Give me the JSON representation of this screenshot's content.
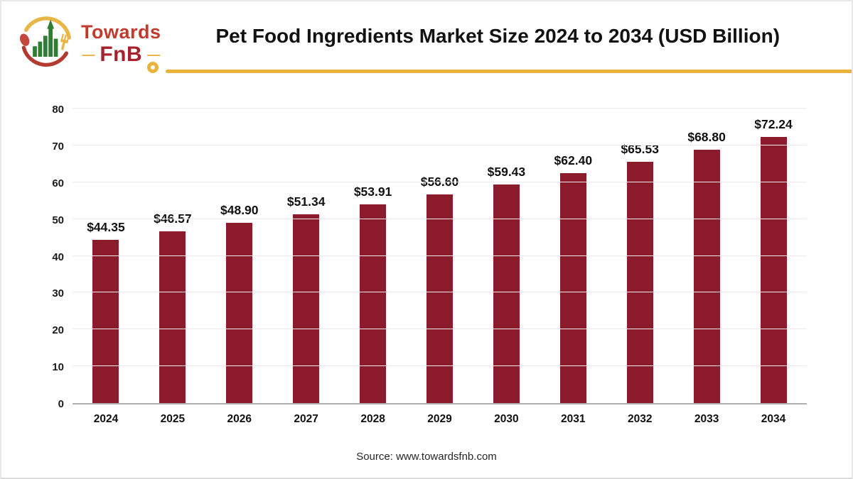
{
  "brand": {
    "name_top": "Towards",
    "name_bottom": "FnB",
    "dash_left": "—",
    "dash_right": "—"
  },
  "chart_data": {
    "type": "bar",
    "title": "Pet Food Ingredients Market Size 2024 to 2034 (USD Billion)",
    "categories": [
      "2024",
      "2025",
      "2026",
      "2027",
      "2028",
      "2029",
      "2030",
      "2031",
      "2032",
      "2033",
      "2034"
    ],
    "values": [
      44.35,
      46.57,
      48.9,
      51.34,
      53.91,
      56.6,
      59.43,
      62.4,
      65.53,
      68.8,
      72.24
    ],
    "value_labels": [
      "$44.35",
      "$46.57",
      "$48.90",
      "$51.34",
      "$53.91",
      "$56.60",
      "$59.43",
      "$62.40",
      "$65.53",
      "$68.80",
      "$72.24"
    ],
    "xlabel": "",
    "ylabel": "",
    "ylim": [
      0,
      80
    ],
    "yticks": [
      0,
      10,
      20,
      30,
      40,
      50,
      60,
      70,
      80
    ],
    "grid": true,
    "legend": "none",
    "bar_color": "#8c1b2b"
  },
  "footer": {
    "source": "Source: www.towardsfnb.com"
  },
  "theme": {
    "accent_yellow": "#e9b33c",
    "bar_maroon": "#8c1b2b",
    "logo_red": "#c23a2c",
    "logo_dark_red": "#a6212b",
    "logo_green": "#2e7d32",
    "text_color": "#1a1a1a",
    "gridline_color": "#ececec",
    "axis_line_color": "#afafaf"
  }
}
